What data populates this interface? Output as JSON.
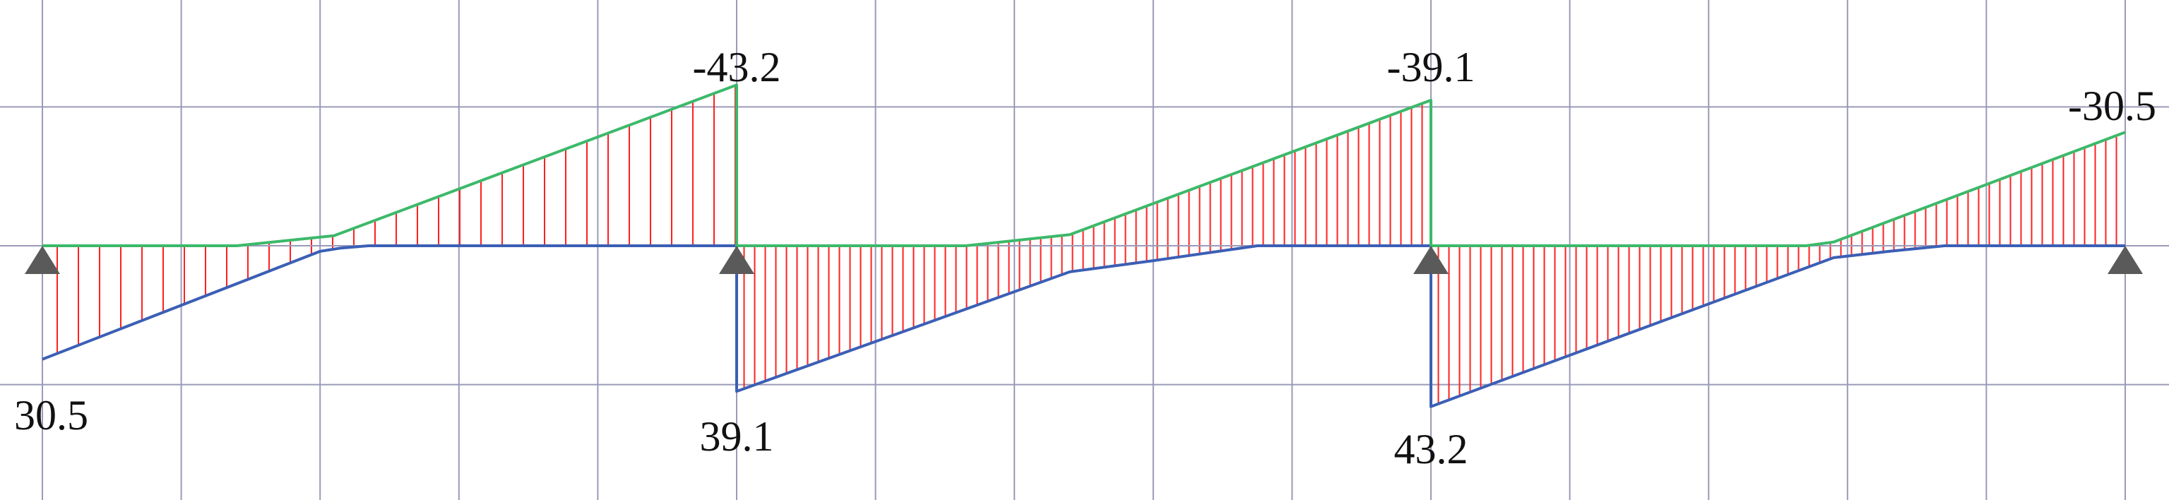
{
  "chart_data": {
    "type": "line",
    "description_kind": "shear force envelope, continuous beam with 3 spans",
    "spans": 3,
    "supports": [
      "pin",
      "pin",
      "pin",
      "pin"
    ],
    "grid": true,
    "colors": {
      "max_envelope": "#3b5fb5",
      "min_envelope": "#3cb96a",
      "hatch": "#ff2020",
      "grid": "#9a9ab8",
      "support": "#5a5a5a",
      "text": "#111111"
    },
    "max_envelope": [
      {
        "x": 0.0,
        "y": 30.5
      },
      {
        "x": 0.4,
        "y": 1.5
      },
      {
        "x": 0.43,
        "y": 0.6
      },
      {
        "x": 0.47,
        "y": 0
      },
      {
        "x": 1.0,
        "y": 0
      },
      {
        "x": 1.0,
        "y": 39.1
      },
      {
        "x": 1.48,
        "y": 7.0
      },
      {
        "x": 1.6,
        "y": 4.0
      },
      {
        "x": 1.75,
        "y": 0
      },
      {
        "x": 2.0,
        "y": 0
      },
      {
        "x": 2.0,
        "y": 43.2
      },
      {
        "x": 2.58,
        "y": 3.2
      },
      {
        "x": 2.66,
        "y": 1.5
      },
      {
        "x": 2.74,
        "y": 0
      },
      {
        "x": 3.0,
        "y": 0
      }
    ],
    "min_envelope": [
      {
        "x": 0.0,
        "y": 0
      },
      {
        "x": 0.28,
        "y": 0
      },
      {
        "x": 0.42,
        "y": -2.7
      },
      {
        "x": 1.0,
        "y": -43.2
      },
      {
        "x": 1.0,
        "y": 0
      },
      {
        "x": 1.33,
        "y": 0
      },
      {
        "x": 1.48,
        "y": -3.0
      },
      {
        "x": 2.0,
        "y": -39.1
      },
      {
        "x": 2.0,
        "y": 0
      },
      {
        "x": 2.54,
        "y": 0
      },
      {
        "x": 2.58,
        "y": -1.0
      },
      {
        "x": 3.0,
        "y": -30.5
      }
    ],
    "labels": [
      {
        "text": "30.5",
        "x": 0,
        "side": "bottom"
      },
      {
        "text": "-43.2",
        "x": 1,
        "side": "top"
      },
      {
        "text": "39.1",
        "x": 1,
        "side": "bottom"
      },
      {
        "text": "-39.1",
        "x": 2,
        "side": "top"
      },
      {
        "text": "43.2",
        "x": 2,
        "side": "bottom"
      },
      {
        "text": "-30.5",
        "x": 3,
        "side": "top"
      }
    ]
  }
}
